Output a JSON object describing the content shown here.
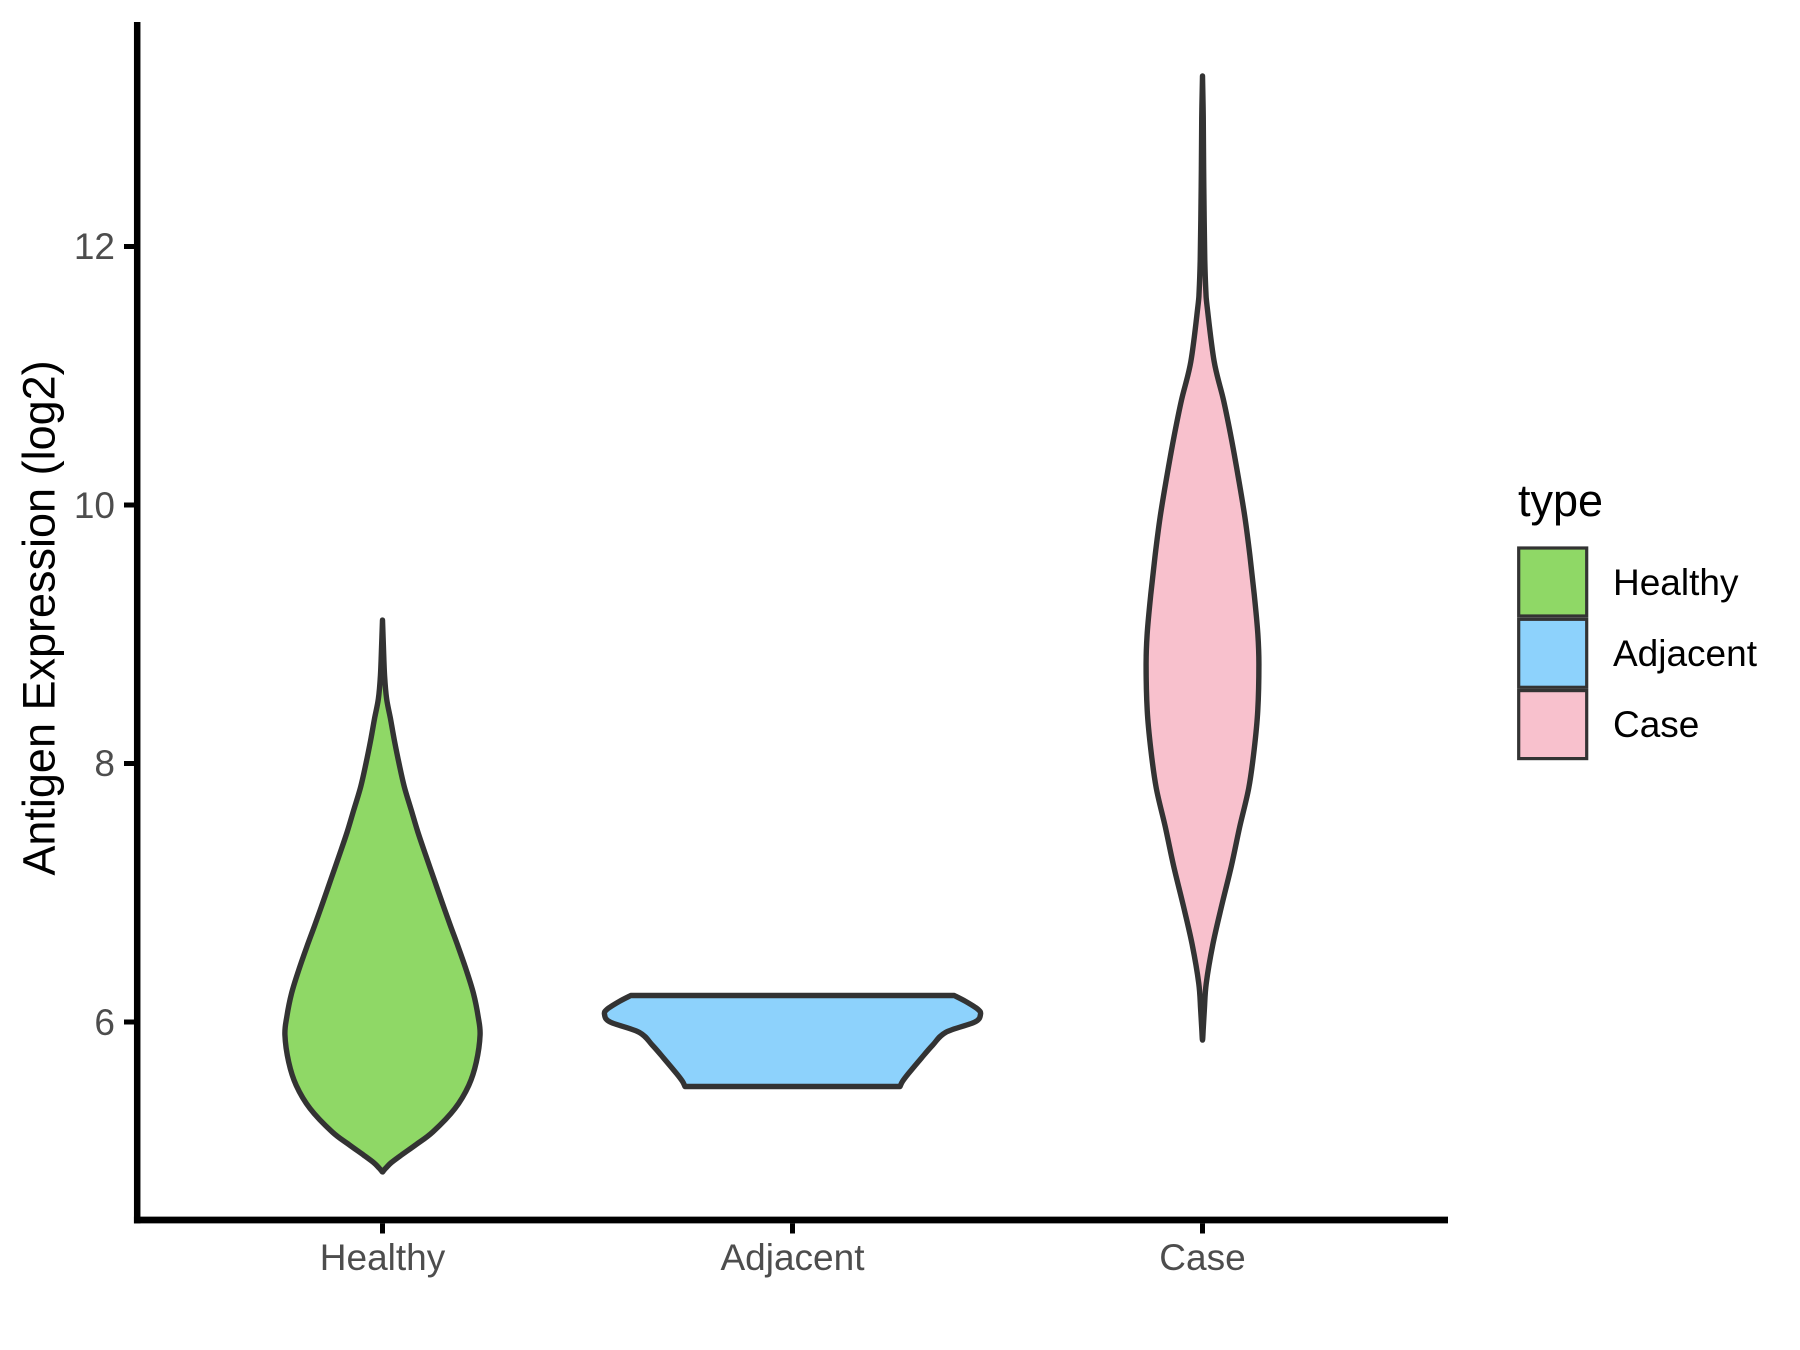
{
  "figure": {
    "background": "#FFFFFF"
  },
  "chart_data": {
    "type": "violin",
    "title": "",
    "xlabel": "",
    "ylabel": "Antigen Expression (log2)",
    "categories": [
      "Healthy",
      "Adjacent",
      "Case"
    ],
    "y_axis": {
      "range": [
        4.47,
        13.74
      ],
      "ticks": [
        {
          "value": 12,
          "label": "12"
        },
        {
          "value": 10,
          "label": "10"
        },
        {
          "value": 8,
          "label": "8"
        },
        {
          "value": 6,
          "label": "6"
        }
      ]
    },
    "x_axis": {
      "ticks": [
        {
          "label": "Healthy"
        },
        {
          "label": "Adjacent"
        },
        {
          "label": "Case"
        }
      ]
    },
    "legend": {
      "title": "type",
      "position": "right",
      "entries": [
        {
          "label": "Healthy",
          "color": "#8FD866"
        },
        {
          "label": "Adjacent",
          "color": "#8DD2FC"
        },
        {
          "label": "Case",
          "color": "#F8C1CD"
        }
      ]
    },
    "style": {
      "outline_color": "#333333",
      "axis_color": "#000000",
      "tick_text_color": "#4D4D4D",
      "grid": "off"
    },
    "series": [
      {
        "name": "Healthy",
        "fill": "#8FD866",
        "trim": false,
        "summary": {
          "min": 4.85,
          "peak": 6.05,
          "max": 9.11
        },
        "profile": [
          [
            9.11,
            0.0
          ],
          [
            8.9,
            0.005
          ],
          [
            8.68,
            0.011
          ],
          [
            8.5,
            0.022
          ],
          [
            8.35,
            0.042
          ],
          [
            8.18,
            0.063
          ],
          [
            8.0,
            0.088
          ],
          [
            7.82,
            0.116
          ],
          [
            7.64,
            0.153
          ],
          [
            7.47,
            0.188
          ],
          [
            7.29,
            0.23
          ],
          [
            7.11,
            0.273
          ],
          [
            6.93,
            0.316
          ],
          [
            6.75,
            0.36
          ],
          [
            6.58,
            0.403
          ],
          [
            6.4,
            0.446
          ],
          [
            6.22,
            0.484
          ],
          [
            6.04,
            0.509
          ],
          [
            5.9,
            0.519
          ],
          [
            5.69,
            0.499
          ],
          [
            5.51,
            0.459
          ],
          [
            5.33,
            0.385
          ],
          [
            5.15,
            0.268
          ],
          [
            5.05,
            0.177
          ],
          [
            4.97,
            0.1
          ],
          [
            4.91,
            0.045
          ],
          [
            4.87,
            0.018
          ],
          [
            4.85,
            0.006
          ],
          [
            4.84,
            0.0
          ]
        ]
      },
      {
        "name": "Adjacent",
        "fill": "#8DD2FC",
        "trim": true,
        "summary": {
          "min": 5.5,
          "peak": 6.07,
          "max": 6.21
        },
        "profile": [
          [
            6.205,
            0.86
          ],
          [
            6.16,
            0.92
          ],
          [
            6.1,
            0.985
          ],
          [
            6.06,
            1.0
          ],
          [
            6.0,
            0.97
          ],
          [
            5.92,
            0.815
          ],
          [
            5.82,
            0.745
          ],
          [
            5.72,
            0.685
          ],
          [
            5.6,
            0.616
          ],
          [
            5.54,
            0.585
          ],
          [
            5.501,
            0.572
          ]
        ]
      },
      {
        "name": "Case",
        "fill": "#F8C1CD",
        "trim": false,
        "summary": {
          "min": 5.86,
          "peak": 8.78,
          "max": 13.32
        },
        "profile": [
          [
            13.32,
            0.0
          ],
          [
            13.0,
            0.004
          ],
          [
            12.6,
            0.006
          ],
          [
            12.2,
            0.009
          ],
          [
            11.9,
            0.012
          ],
          [
            11.65,
            0.018
          ],
          [
            11.53,
            0.025
          ],
          [
            11.11,
            0.062
          ],
          [
            10.81,
            0.112
          ],
          [
            10.51,
            0.154
          ],
          [
            10.21,
            0.191
          ],
          [
            9.91,
            0.225
          ],
          [
            9.61,
            0.252
          ],
          [
            9.31,
            0.275
          ],
          [
            9.01,
            0.294
          ],
          [
            8.77,
            0.3
          ],
          [
            8.41,
            0.294
          ],
          [
            8.11,
            0.275
          ],
          [
            7.81,
            0.246
          ],
          [
            7.51,
            0.198
          ],
          [
            7.21,
            0.154
          ],
          [
            6.9,
            0.102
          ],
          [
            6.6,
            0.055
          ],
          [
            6.3,
            0.02
          ],
          [
            6.1,
            0.01
          ],
          [
            5.95,
            0.004
          ],
          [
            5.86,
            0.0
          ]
        ]
      }
    ]
  }
}
